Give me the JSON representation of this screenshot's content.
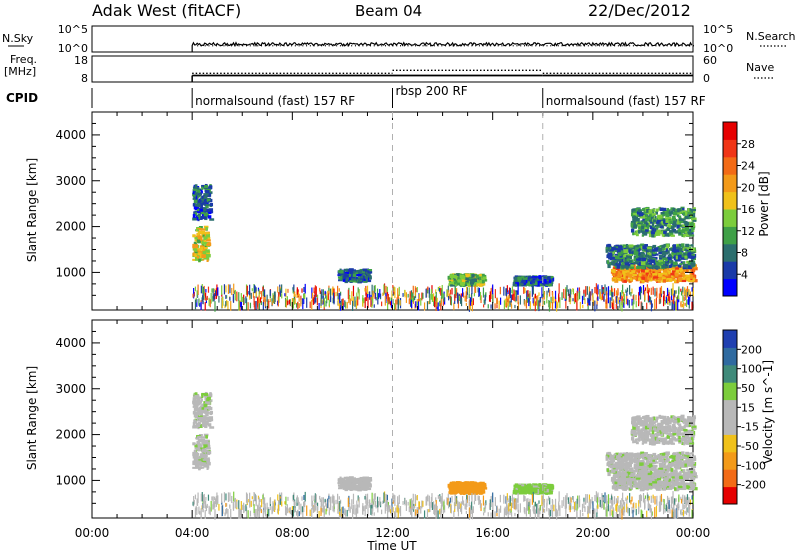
{
  "header": {
    "station": "Adak West (fitACF)",
    "beam": "Beam 04",
    "date": "22/Dec/2012"
  },
  "noise_panel": {
    "left_label": "N.Sky",
    "left_ticks": [
      "10^5",
      "10^0"
    ],
    "right_label": "N.Search",
    "right_ticks": [
      "10^5",
      "10^0"
    ]
  },
  "freq_panel": {
    "left_label_line1": "Freq.",
    "left_label_line2": "[MHz]",
    "left_ticks": [
      "18",
      "8"
    ],
    "right_label": "Nave",
    "right_ticks": [
      "60",
      "0"
    ]
  },
  "cpid": {
    "label": "CPID",
    "segments": [
      {
        "start_ut": 4,
        "end_ut": 12,
        "name": "normalsound (fast) 157 RF"
      },
      {
        "start_ut": 12,
        "end_ut": 18,
        "name": "rbsp 200 RF"
      },
      {
        "start_ut": 18,
        "end_ut": 24,
        "name": "normalsound (fast) 157 RF"
      }
    ]
  },
  "axes": {
    "ylabel": "Slant Range [km]",
    "xlabel": "Time UT",
    "x_ticks": [
      "00:00",
      "04:00",
      "08:00",
      "12:00",
      "16:00",
      "20:00",
      "00:00"
    ],
    "y_ticks": [
      "1000",
      "2000",
      "3000",
      "4000"
    ]
  },
  "power_colorbar": {
    "label": "Power [dB]",
    "ticks": [
      "4",
      "8",
      "12",
      "16",
      "20",
      "24",
      "28"
    ],
    "colors": [
      "#0000ff",
      "#1a3aa8",
      "#2b6e6e",
      "#3fa047",
      "#7ccd3c",
      "#f0c11a",
      "#f39a19",
      "#f36b16",
      "#f03516",
      "#e60000"
    ]
  },
  "velocity_colorbar": {
    "label": "Velocity [m s^-1]",
    "ticks": [
      "200",
      "100",
      "50",
      "15",
      "-15",
      "-50",
      "-100",
      "-200"
    ],
    "colors": [
      "#1f3fb0",
      "#2f6aa0",
      "#3f8a7a",
      "#7ccd3c",
      "#b8b8b8",
      "#b8b8b8",
      "#f0c11a",
      "#f39a19",
      "#f36b16",
      "#e60000"
    ]
  },
  "chart_data": {
    "type": "heatmap",
    "x_unit": "hours UT",
    "xlim": [
      0,
      24
    ],
    "ylim": [
      180,
      4500
    ],
    "scatter_floor_km": [
      250,
      650
    ],
    "patches": [
      {
        "t0": 4.0,
        "t1": 4.6,
        "r0": 1250,
        "r1": 2000,
        "power": 16,
        "velocity": 0
      },
      {
        "t0": 4.0,
        "t1": 4.7,
        "r0": 2150,
        "r1": 2900,
        "power": 6,
        "velocity": 0
      },
      {
        "t0": 9.8,
        "t1": 11.0,
        "r0": 800,
        "r1": 1050,
        "power": 7,
        "velocity": -30
      },
      {
        "t0": 14.2,
        "t1": 15.6,
        "r0": 720,
        "r1": 950,
        "power": 12,
        "velocity": -180
      },
      {
        "t0": 16.8,
        "t1": 18.3,
        "r0": 720,
        "r1": 900,
        "power": 6,
        "velocity": 30
      },
      {
        "t0": 20.7,
        "t1": 24.0,
        "r0": 800,
        "r1": 1150,
        "power": 20,
        "velocity": 0
      },
      {
        "t0": 20.5,
        "t1": 24.0,
        "r0": 1100,
        "r1": 1600,
        "power": 8,
        "velocity": 0
      },
      {
        "t0": 21.5,
        "t1": 24.0,
        "r0": 1800,
        "r1": 2400,
        "power": 10,
        "velocity": 0
      }
    ],
    "noise_level_log10": 1.5,
    "frequency_mhz": [
      {
        "t0": 4,
        "t1": 12,
        "value": 10.5
      },
      {
        "t0": 12,
        "t1": 18,
        "value": 10.5
      },
      {
        "t0": 18,
        "t1": 24,
        "value": 10.5
      }
    ],
    "nave": [
      {
        "t0": 4,
        "t1": 12,
        "value": 20
      },
      {
        "t0": 12,
        "t1": 18,
        "value": 27
      },
      {
        "t0": 18,
        "t1": 24,
        "value": 20
      }
    ]
  }
}
